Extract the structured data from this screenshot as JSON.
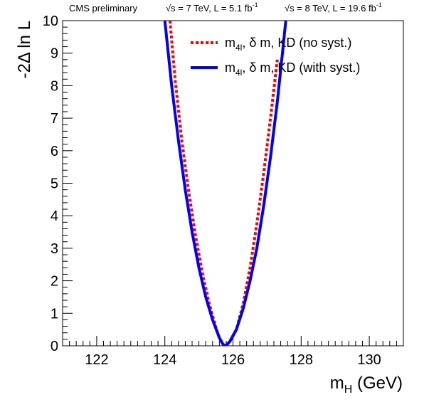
{
  "header": {
    "left": "CMS preliminary",
    "right_sqrt_symbol": "√",
    "run1_part1": "s = 7 TeV, L = 5.1 fb",
    "run1_exp": "-1",
    "run2_part1": "s = 8 TeV, L = 19.6 fb",
    "run2_exp": "-1"
  },
  "chart_data": {
    "type": "line",
    "title": "",
    "xlabel": "m_H (GeV)",
    "xlabel_main": "m",
    "xlabel_sub": "H",
    "xlabel_unit": " (GeV)",
    "ylabel": "-2Δ ln L",
    "xlim": [
      121.0,
      131.0
    ],
    "ylim": [
      0,
      10
    ],
    "x_ticks": [
      122,
      124,
      126,
      128,
      130
    ],
    "y_ticks": [
      0,
      1,
      2,
      3,
      4,
      5,
      6,
      7,
      8,
      9,
      10
    ],
    "grid": false,
    "legend_position": "top-right",
    "series": [
      {
        "name": "m4l, δ m, KD (no syst.)",
        "legend_main": "m",
        "legend_sub": "4l",
        "legend_rest": ", δ m, KD (no syst.)",
        "color": "#ff0000",
        "style": "dashed",
        "x": [
          124.15,
          124.3,
          124.5,
          124.7,
          124.9,
          125.1,
          125.3,
          125.5,
          125.6,
          125.7,
          125.75,
          125.8,
          125.9,
          126.1,
          126.3,
          126.5,
          126.7,
          126.9,
          127.1,
          127.3
        ],
        "y": [
          10.0,
          8.2,
          6.3,
          4.75,
          3.4,
          2.25,
          1.3,
          0.55,
          0.25,
          0.06,
          0.0,
          0.02,
          0.12,
          0.5,
          1.3,
          2.4,
          3.75,
          5.3,
          7.0,
          8.8
        ]
      },
      {
        "name": "m4l, δ m, KD (with syst.)",
        "legend_main": "m",
        "legend_sub": "4l",
        "legend_rest": ", δ m, KD (with syst.)",
        "color": "#0000ff",
        "style": "solid",
        "x": [
          124.0,
          124.2,
          124.4,
          124.6,
          124.8,
          125.0,
          125.2,
          125.4,
          125.6,
          125.7,
          125.75,
          125.8,
          125.9,
          126.1,
          126.3,
          126.5,
          126.7,
          126.9,
          127.1,
          127.3,
          127.45,
          127.55
        ],
        "y": [
          10.0,
          8.0,
          6.3,
          4.8,
          3.5,
          2.4,
          1.5,
          0.8,
          0.25,
          0.06,
          0.0,
          0.02,
          0.12,
          0.5,
          1.15,
          2.0,
          3.0,
          4.3,
          5.8,
          7.5,
          9.0,
          10.0
        ]
      }
    ]
  }
}
